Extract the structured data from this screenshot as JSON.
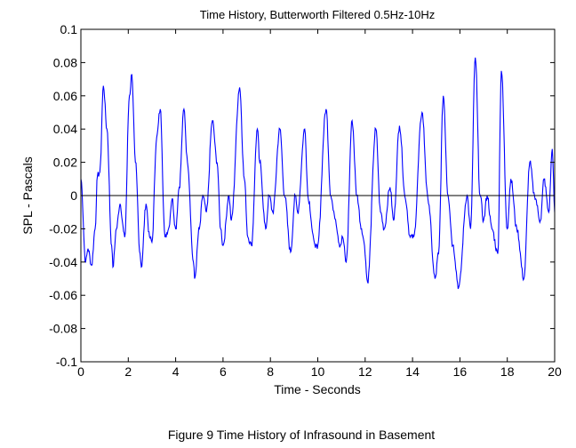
{
  "chart_data": {
    "type": "line",
    "title": "Time History, Butterworth Filtered 0.5Hz-10Hz",
    "xlabel": "Time - Seconds",
    "ylabel": "SPL - Pascals",
    "xlim": [
      0,
      20
    ],
    "ylim": [
      -0.1,
      0.1
    ],
    "xticks": [
      "0",
      "2",
      "4",
      "6",
      "8",
      "10",
      "12",
      "14",
      "16",
      "18",
      "20"
    ],
    "yticks": [
      "0.1",
      "0.08",
      "0.06",
      "0.04",
      "0.02",
      "0",
      "-0.02",
      "-0.04",
      "-0.06",
      "-0.08",
      "-0.1"
    ],
    "grid": false,
    "zero_line": true,
    "series_color": "#0000ff",
    "series": [
      {
        "x": [
          0,
          0.2,
          0.3,
          0.45,
          0.6,
          0.7,
          0.8,
          0.95,
          1.1,
          1.3,
          1.35,
          1.5,
          1.65,
          1.85,
          2.05,
          2.15,
          2.3,
          2.5,
          2.55,
          2.75,
          2.9,
          3.0,
          3.2,
          3.35,
          3.55,
          3.7,
          3.85,
          4.0,
          4.15,
          4.35,
          4.5,
          4.75,
          4.8,
          5.0,
          5.15,
          5.3,
          5.55,
          5.75,
          5.9,
          6.0,
          6.25,
          6.35,
          6.7,
          6.9,
          7.05,
          7.2,
          7.45,
          7.55,
          7.8,
          7.95,
          8.1,
          8.4,
          8.6,
          8.85,
          9.05,
          9.15,
          9.45,
          9.6,
          9.85,
          9.98,
          10.35,
          10.55,
          10.7,
          10.95,
          11.05,
          11.2,
          11.45,
          11.65,
          11.85,
          11.95,
          12.1,
          12.45,
          12.65,
          12.8,
          13.05,
          13.2,
          13.45,
          13.7,
          13.9,
          14.05,
          14.4,
          14.65,
          14.95,
          15.1,
          15.3,
          15.5,
          15.7,
          15.95,
          16.3,
          16.45,
          16.65,
          16.85,
          17.0,
          17.15,
          17.35,
          17.6,
          17.75,
          18.0,
          18.15,
          18.4,
          18.7,
          18.95,
          19.15,
          19.4,
          19.55,
          19.75,
          19.9,
          20
        ],
        "y": [
          0.01,
          -0.04,
          -0.032,
          -0.042,
          -0.02,
          0.012,
          0.014,
          0.066,
          0.04,
          -0.03,
          -0.043,
          -0.02,
          -0.005,
          -0.025,
          0.06,
          0.073,
          0.02,
          -0.035,
          -0.043,
          -0.005,
          -0.025,
          -0.028,
          0.035,
          0.052,
          -0.025,
          -0.02,
          -0.002,
          -0.02,
          0.005,
          0.052,
          0.02,
          -0.04,
          -0.05,
          -0.02,
          0.0,
          -0.01,
          0.045,
          0.02,
          -0.02,
          -0.03,
          0.0,
          -0.015,
          0.065,
          0.01,
          -0.025,
          -0.03,
          0.04,
          0.02,
          -0.02,
          0.0,
          -0.01,
          0.04,
          0.0,
          -0.034,
          0.0,
          -0.01,
          0.04,
          -0.002,
          -0.028,
          -0.032,
          0.052,
          0.0,
          -0.012,
          -0.03,
          -0.025,
          -0.04,
          0.045,
          0.0,
          -0.02,
          -0.028,
          -0.052,
          0.04,
          -0.01,
          -0.02,
          0.005,
          -0.015,
          0.042,
          -0.002,
          -0.025,
          -0.025,
          0.05,
          -0.002,
          -0.05,
          -0.035,
          0.06,
          0.0,
          -0.03,
          -0.055,
          0.0,
          -0.02,
          0.083,
          0.0,
          -0.015,
          0.0,
          -0.02,
          -0.035,
          0.075,
          -0.02,
          0.01,
          -0.02,
          -0.05,
          0.02,
          0.0,
          -0.015,
          0.01,
          -0.01,
          0.028,
          -0.01
        ]
      }
    ]
  },
  "caption": "Figure 9   Time History of Infrasound in Basement"
}
